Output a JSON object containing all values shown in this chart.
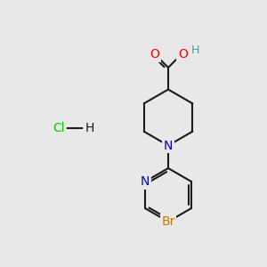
{
  "background_color": "#e8e8e8",
  "bond_color": "#1a1a1a",
  "atom_colors": {
    "O": "#ff0000",
    "H_acid": "#4a9a9a",
    "N": "#0000cc",
    "Br": "#cc7700",
    "Cl": "#00cc00",
    "C": "#1a1a1a"
  },
  "figsize": [
    3.0,
    3.0
  ],
  "dpi": 100
}
